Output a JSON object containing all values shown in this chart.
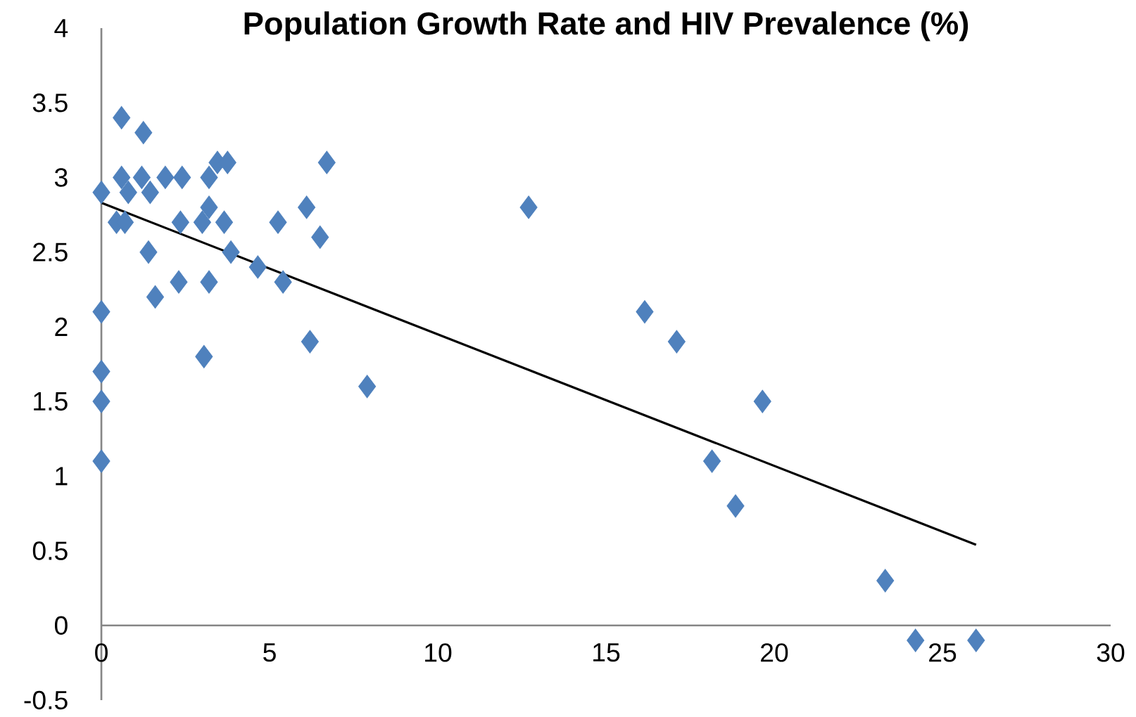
{
  "chart_data": {
    "type": "scatter",
    "title": "Population Growth Rate and HIV Prevalence (%)",
    "xlim": [
      0,
      30
    ],
    "ylim": [
      -0.5,
      4
    ],
    "xticks": [
      0,
      5,
      10,
      15,
      20,
      25,
      30
    ],
    "yticks": [
      -0.5,
      0,
      0.5,
      1,
      1.5,
      2,
      2.5,
      3,
      3.5,
      4
    ],
    "grid": false,
    "marker": "diamond",
    "series": [
      {
        "type": "scatter",
        "color": "#4f81bd",
        "x": [
          0,
          0,
          0,
          0,
          0,
          0.6,
          1.25,
          0.6,
          1.2,
          0.8,
          1.45,
          1.9,
          2.4,
          0.45,
          0.7,
          1.4,
          1.6,
          2.3,
          2.35,
          3.0,
          3.2,
          3.2,
          3.45,
          3.75,
          3.65,
          3.85,
          3.2,
          3.05,
          4.65,
          5.25,
          5.4,
          6.1,
          6.5,
          6.7,
          6.2,
          7.9,
          12.7,
          16.15,
          17.1,
          19.65,
          18.15,
          18.85,
          23.3,
          24.2,
          26.0
        ],
        "values": [
          2.9,
          2.1,
          1.7,
          1.5,
          1.1,
          3.4,
          3.3,
          3.0,
          3.0,
          2.9,
          2.9,
          3.0,
          3.0,
          2.7,
          2.7,
          2.5,
          2.2,
          2.3,
          2.7,
          2.7,
          2.8,
          3.0,
          3.1,
          3.1,
          2.7,
          2.5,
          2.3,
          1.8,
          2.4,
          2.7,
          2.3,
          2.8,
          2.6,
          3.1,
          1.9,
          1.6,
          2.8,
          2.1,
          1.9,
          1.5,
          1.1,
          0.8,
          0.3,
          -0.1,
          -0.1
        ]
      },
      {
        "type": "line",
        "color": "#000000",
        "marker": "none",
        "x": [
          0,
          26
        ],
        "values": [
          2.83,
          0.54
        ]
      }
    ]
  }
}
